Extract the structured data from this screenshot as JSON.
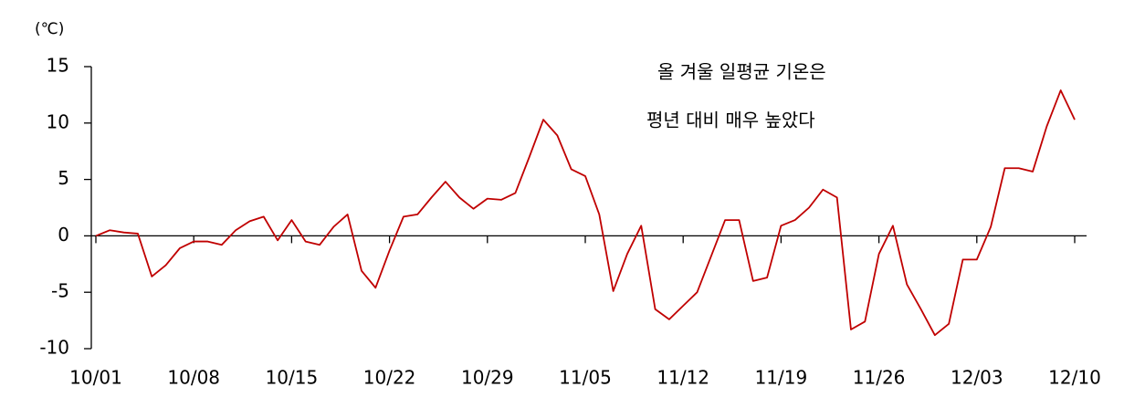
{
  "chart_data": {
    "type": "line",
    "unit_label": "(℃)",
    "annotation": [
      "올 겨울 일평균 기온은",
      "평년 대비 매우 높았다"
    ],
    "categories": [
      "10/01",
      null,
      null,
      null,
      null,
      null,
      null,
      "10/08",
      null,
      null,
      null,
      null,
      null,
      null,
      "10/15",
      null,
      null,
      null,
      null,
      null,
      null,
      "10/22",
      null,
      null,
      null,
      null,
      null,
      null,
      "10/29",
      null,
      null,
      null,
      null,
      null,
      null,
      "11/05",
      null,
      null,
      null,
      null,
      null,
      null,
      "11/12",
      null,
      null,
      null,
      null,
      null,
      null,
      "11/19",
      null,
      null,
      null,
      null,
      null,
      null,
      "11/26",
      null,
      null,
      null,
      null,
      null,
      null,
      "12/03",
      null,
      null,
      null,
      null,
      null,
      null,
      "12/10"
    ],
    "series": [
      {
        "color": "#c00000",
        "values": [
          0,
          0.5,
          0.3,
          0.2,
          -3.6,
          -2.6,
          -1.1,
          -0.5,
          -0.5,
          -0.8,
          0.5,
          1.3,
          1.7,
          -0.4,
          1.4,
          -0.5,
          -0.8,
          0.8,
          1.9,
          -3.1,
          -4.6,
          -1.3,
          1.7,
          1.9,
          3.4,
          4.8,
          3.4,
          2.4,
          3.3,
          3.2,
          3.8,
          7.0,
          10.3,
          8.9,
          5.9,
          5.3,
          1.9,
          -4.9,
          -1.6,
          0.9,
          -6.5,
          -7.4,
          -6.2,
          -5.0,
          -1.8,
          1.4,
          1.4,
          -4.0,
          -3.7,
          0.9,
          1.4,
          2.5,
          4.1,
          3.4,
          -8.3,
          -7.6,
          -1.6,
          0.9,
          -4.3,
          -6.5,
          -8.8,
          -7.8,
          -2.1,
          -2.1,
          0.8,
          6.0,
          6.0,
          5.7,
          9.7,
          12.9,
          10.3
        ]
      }
    ],
    "ylim": [
      -10,
      15
    ],
    "yticks": [
      -10,
      -5,
      0,
      5,
      10,
      15
    ]
  }
}
